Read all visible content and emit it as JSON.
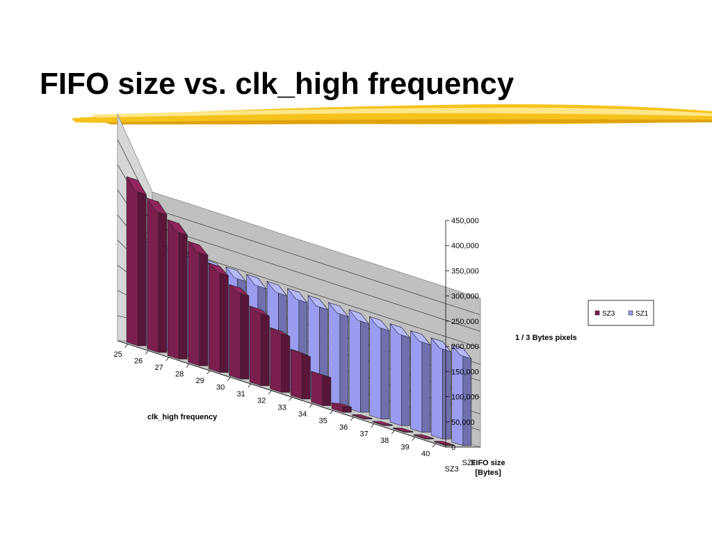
{
  "slide": {
    "title": "FIFO size vs. clk_high frequency"
  },
  "colors": {
    "accent_brush": "#f5c518",
    "wall": "#c0c0c0",
    "floor": "#c8c8c8"
  },
  "chart_data": {
    "type": "bar",
    "style": "3d-column",
    "categories": [
      "25",
      "26",
      "27",
      "28",
      "29",
      "30",
      "31",
      "32",
      "33",
      "34",
      "35",
      "36",
      "37",
      "38",
      "39",
      "40"
    ],
    "series": [
      {
        "name": "SZ3",
        "color": "#7b1f4f",
        "values": [
          344000,
          313000,
          282000,
          251000,
          220000,
          189000,
          158000,
          127000,
          96000,
          64000,
          12000,
          1500,
          1500,
          1500,
          1500,
          1500
        ]
      },
      {
        "name": "SZ1",
        "color": "#9a9cf0",
        "values": [
          263000,
          262000,
          260000,
          259000,
          258000,
          256000,
          255000,
          254000,
          253000,
          252000,
          251000,
          250000,
          249000,
          248000,
          247000,
          246000
        ]
      }
    ],
    "xlabel": "clk_high frequency",
    "ylabel": "1 / 3 Bytes pixels",
    "zlabel": "FIFO size [Bytes]",
    "depth_labels": [
      "SZ1",
      "SZ3"
    ],
    "yticks": [
      "450,000",
      "400,000",
      "350,000",
      "300,000",
      "250,000",
      "200,000",
      "150,000",
      "100,000",
      "50,000",
      "0"
    ],
    "ylim": [
      0,
      450000
    ],
    "grid": true,
    "legend": {
      "position": "right",
      "entries": [
        "SZ3",
        "SZ1"
      ]
    }
  }
}
